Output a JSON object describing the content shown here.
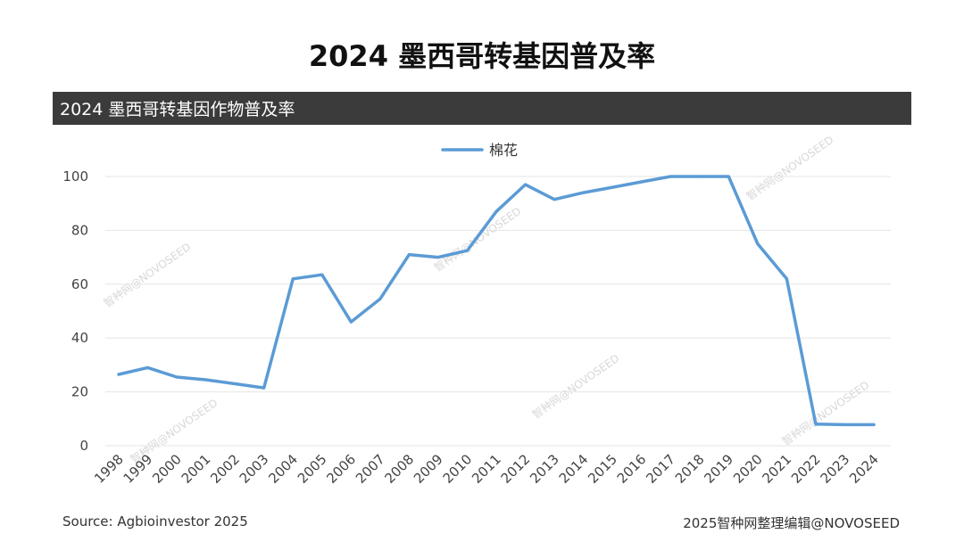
{
  "header": {
    "title": "2024 墨西哥转基因普及率"
  },
  "chart_data": {
    "type": "line",
    "title": "2024 墨西哥转基因作物普及率",
    "xlabel": "",
    "ylabel": "",
    "ylim": [
      0,
      100
    ],
    "yticks": [
      0,
      20,
      40,
      60,
      80,
      100
    ],
    "grid": true,
    "legend_position": "top-center",
    "categories": [
      "1998",
      "1999",
      "2000",
      "2001",
      "2002",
      "2003",
      "2004",
      "2005",
      "2006",
      "2007",
      "2008",
      "2009",
      "2010",
      "2011",
      "2012",
      "2013",
      "2014",
      "2015",
      "2016",
      "2017",
      "2018",
      "2019",
      "2020",
      "2021",
      "2022",
      "2023",
      "2024"
    ],
    "series": [
      {
        "name": "棉花",
        "color": "#5b9bd5",
        "values": [
          26.5,
          29,
          25.5,
          24.5,
          23,
          21.5,
          62,
          63.5,
          46,
          54.5,
          71,
          70,
          72.5,
          87,
          97,
          91.5,
          94,
          96,
          98,
          100,
          100,
          100,
          75,
          62,
          8,
          7.8,
          7.8
        ]
      }
    ]
  },
  "footer": {
    "source": "Source: Agbioinvestor 2025",
    "credit": "2025智种网整理编辑@NOVOSEED"
  },
  "watermark": "智种网@NOVOSEED"
}
